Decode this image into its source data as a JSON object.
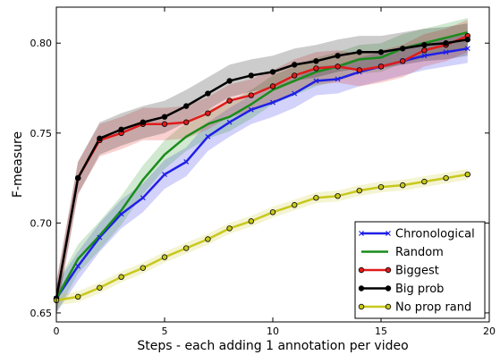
{
  "chart_data": {
    "type": "line",
    "title": "",
    "xlabel": "Steps - each adding 1 annotation per video",
    "ylabel": "F-measure",
    "xlim": [
      0,
      20
    ],
    "ylim": [
      0.645,
      0.82
    ],
    "xticks": [
      0,
      5,
      10,
      15,
      20
    ],
    "yticks": [
      0.65,
      0.7,
      0.75,
      0.8
    ],
    "ytick_labels": [
      "0.65",
      "0.70",
      "0.75",
      "0.80"
    ],
    "grid": false,
    "legend_position": "lower-right",
    "x": [
      0,
      1,
      2,
      3,
      4,
      5,
      6,
      7,
      8,
      9,
      10,
      11,
      12,
      13,
      14,
      15,
      16,
      17,
      18,
      19
    ],
    "series": [
      {
        "name": "Chronological",
        "color": "#1f1fe6",
        "marker": "x",
        "values": [
          0.658,
          0.676,
          0.692,
          0.705,
          0.714,
          0.727,
          0.734,
          0.748,
          0.756,
          0.763,
          0.767,
          0.772,
          0.779,
          0.78,
          0.784,
          0.787,
          0.79,
          0.793,
          0.795,
          0.797
        ],
        "band": 0.008
      },
      {
        "name": "Random",
        "color": "#1a8c1a",
        "marker": "none",
        "values": [
          0.658,
          0.68,
          0.693,
          0.707,
          0.724,
          0.738,
          0.748,
          0.755,
          0.759,
          0.766,
          0.774,
          0.779,
          0.784,
          0.787,
          0.791,
          0.792,
          0.797,
          0.8,
          0.803,
          0.806
        ],
        "band": 0.008
      },
      {
        "name": "Biggest",
        "color": "#e01b1b",
        "marker": "o",
        "values": [
          0.658,
          0.725,
          0.746,
          0.75,
          0.755,
          0.755,
          0.756,
          0.761,
          0.768,
          0.771,
          0.776,
          0.782,
          0.786,
          0.787,
          0.785,
          0.787,
          0.79,
          0.796,
          0.799,
          0.804
        ],
        "band": 0.009
      },
      {
        "name": "Big prob",
        "color": "#000000",
        "marker": "o",
        "values": [
          0.658,
          0.725,
          0.747,
          0.752,
          0.756,
          0.759,
          0.765,
          0.772,
          0.779,
          0.782,
          0.784,
          0.788,
          0.79,
          0.793,
          0.795,
          0.795,
          0.797,
          0.799,
          0.8,
          0.802
        ],
        "band": 0.009
      },
      {
        "name": "No prop rand",
        "color": "#c8c81e",
        "marker": "o",
        "values": [
          0.657,
          0.659,
          0.664,
          0.67,
          0.675,
          0.681,
          0.686,
          0.691,
          0.697,
          0.701,
          0.706,
          0.71,
          0.714,
          0.715,
          0.718,
          0.72,
          0.721,
          0.723,
          0.725,
          0.727
        ],
        "band": 0.003
      }
    ]
  }
}
